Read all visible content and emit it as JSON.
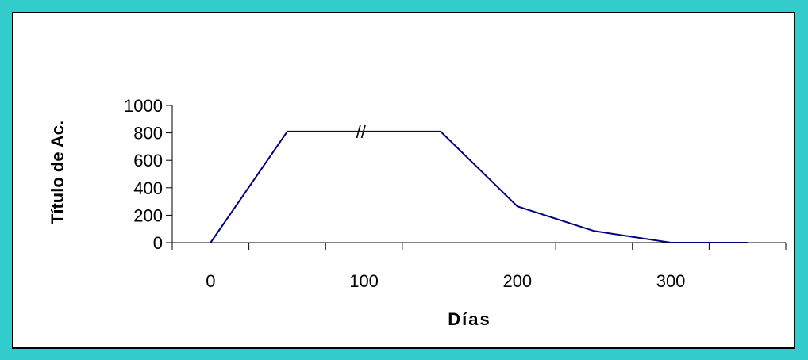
{
  "chart_data": {
    "type": "line",
    "title": "",
    "xlabel": "Días",
    "ylabel": "Título de Ac.",
    "xlim": [
      -25,
      375
    ],
    "ylim": [
      0,
      1000
    ],
    "xticks": [
      0,
      100,
      200,
      300
    ],
    "yticks": [
      0,
      200,
      400,
      600,
      800,
      1000
    ],
    "grid": false,
    "legend": "none",
    "annotations": [
      {
        "text": "//",
        "x": 98,
        "y": 810
      }
    ],
    "series": [
      {
        "color": "#000080",
        "x": [
          0,
          50,
          150,
          200,
          250,
          300,
          350
        ],
        "y": [
          0,
          810,
          810,
          265,
          85,
          0,
          0
        ]
      }
    ]
  },
  "colors": {
    "frame": "#33CCCC",
    "line": "#000080"
  }
}
